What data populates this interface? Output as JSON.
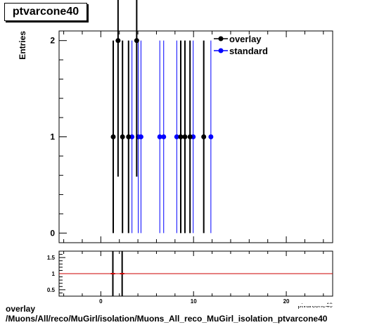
{
  "title": "ptvarcone40",
  "footer": {
    "line1": "overlay",
    "line2": "/Muons/All/reco/MuGirl/isolation/Muons_All_reco_MuGirl_isolation_ptvarcone40"
  },
  "colors": {
    "overlay": "#000000",
    "standard": "#0000ff",
    "ratio_line": "#cc0000"
  },
  "chart_data": [
    {
      "type": "scatter",
      "title": "ptvarcone40",
      "xlabel": "ptvarcone40",
      "ylabel": "Entries",
      "xlim": [
        -4.5,
        25
      ],
      "ylim": [
        -0.1,
        2.1
      ],
      "y_ticks": [
        "0",
        "1",
        "2"
      ],
      "legend": {
        "position": "top-right",
        "entries": [
          "overlay",
          "standard"
        ]
      },
      "series": [
        {
          "name": "overlay",
          "color": "#000000",
          "x": [
            1.34,
            1.86,
            2.34,
            2.99,
            3.87,
            8.62,
            9.07,
            9.62,
            11.1
          ],
          "y": [
            1,
            2,
            1,
            1,
            2,
            1,
            1,
            1,
            1
          ]
        },
        {
          "name": "standard",
          "color": "#0000ff",
          "x": [
            3.36,
            4.04,
            4.33,
            6.36,
            6.78,
            8.19,
            9.96,
            11.87
          ],
          "y": [
            1,
            1,
            1,
            1,
            1,
            1,
            1,
            1
          ]
        }
      ]
    },
    {
      "type": "scatter",
      "title": "",
      "xlabel": "ptvarcone40",
      "ylabel": "",
      "xlim": [
        -4.5,
        25
      ],
      "ylim": [
        0.3,
        1.7
      ],
      "x_ticks": [
        "0",
        "10",
        "20"
      ],
      "y_ticks": [
        "0.5",
        "1",
        "1.5"
      ],
      "reference_line": 1,
      "series": [
        {
          "name": "ratio",
          "x": [
            1.3,
            2.3
          ],
          "y": [
            1,
            1
          ]
        }
      ]
    }
  ]
}
